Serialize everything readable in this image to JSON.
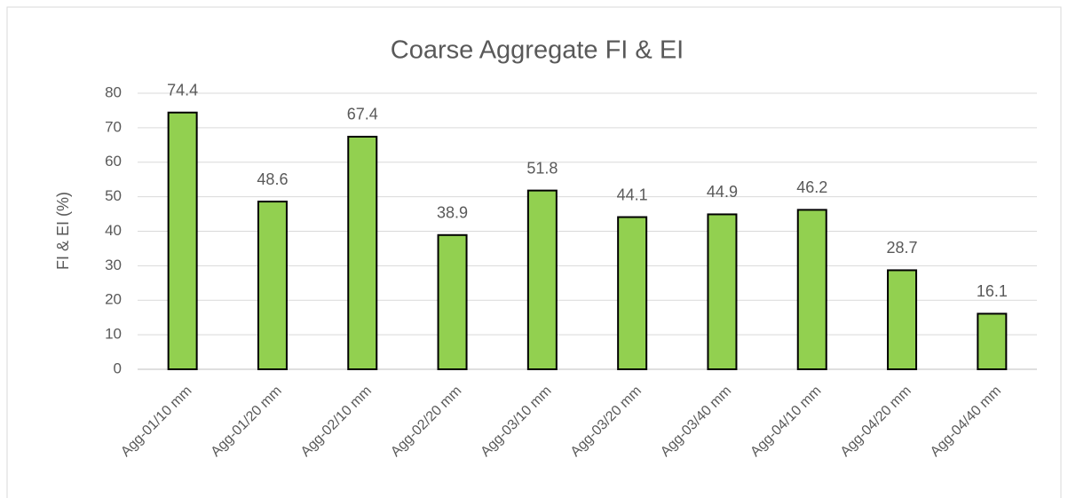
{
  "chart_data": {
    "type": "bar",
    "title": "Coarse Aggregate FI & EI",
    "y_label": "FI & EI (%)",
    "categories": [
      "Agg-01/10 mm",
      "Agg-01/20 mm",
      "Agg-02/10 mm",
      "Agg-02/20 mm",
      "Agg-03/10 mm",
      "Agg-03/20 mm",
      "Agg-03/40 mm",
      "Agg-04/10 mm",
      "Agg-04/20 mm",
      "Agg-04/40 mm"
    ],
    "values": [
      74.4,
      48.6,
      67.4,
      38.9,
      51.8,
      44.1,
      44.9,
      46.2,
      28.7,
      16.1
    ],
    "color": "#92d050",
    "ylim": [
      0,
      80
    ],
    "yticks": [
      0,
      10,
      20,
      30,
      40,
      50,
      60,
      70,
      80
    ],
    "grid": true
  }
}
